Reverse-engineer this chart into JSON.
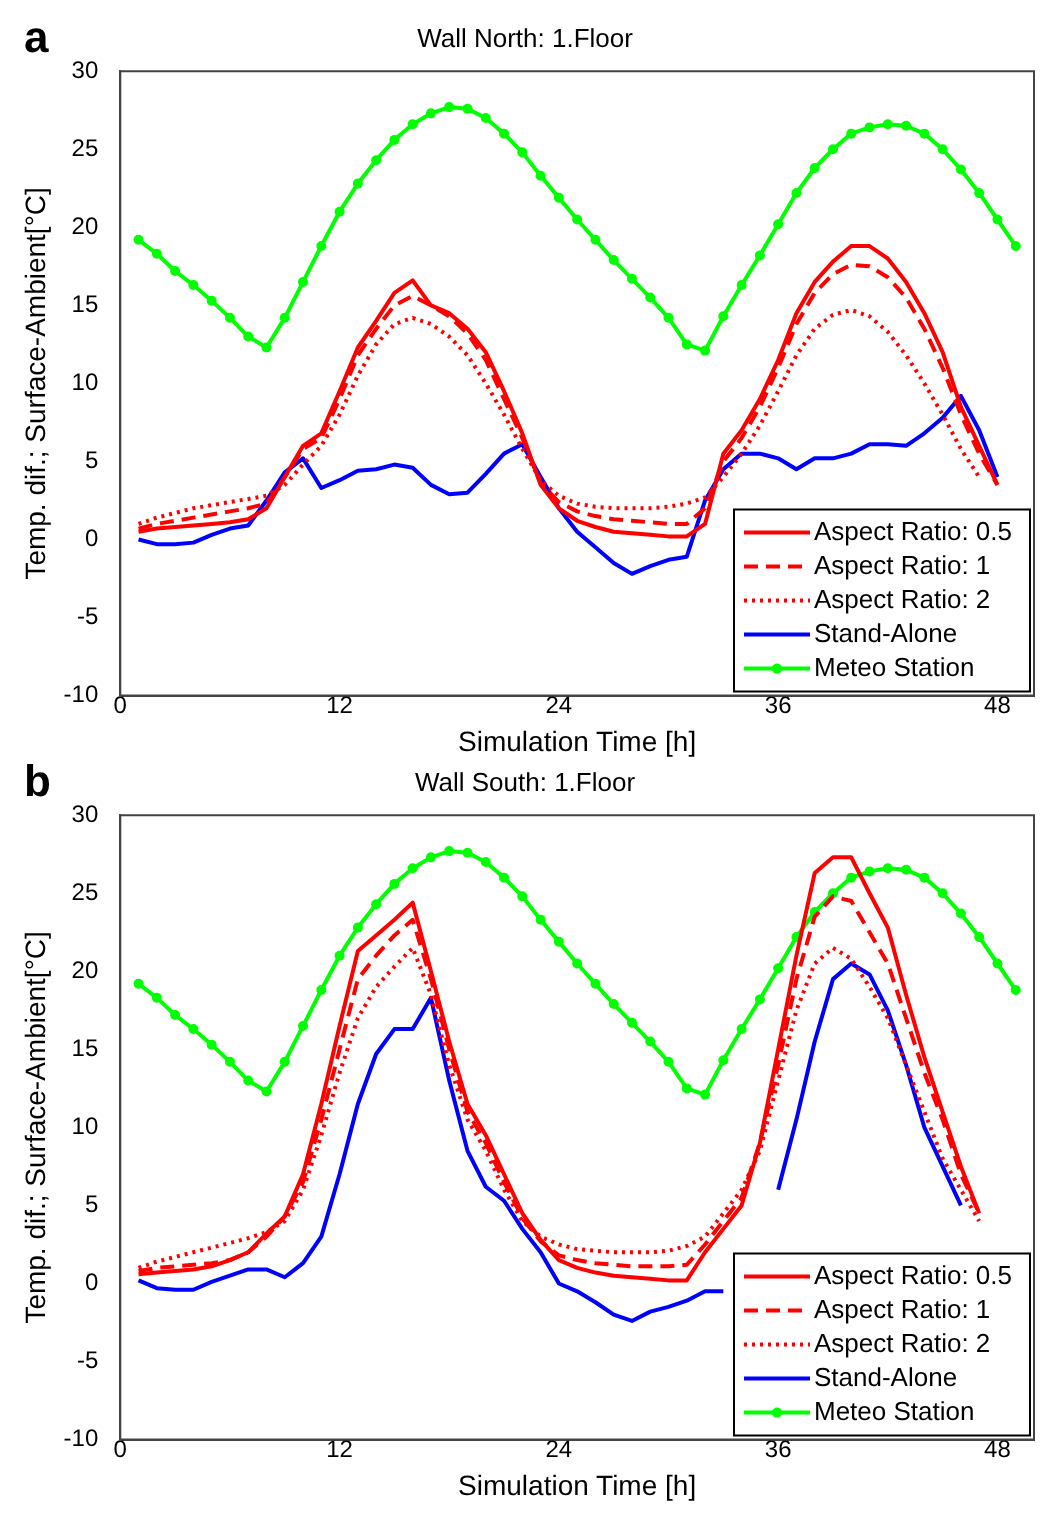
{
  "chart_data": [
    {
      "type": "line",
      "title": "Wall North: 1.Floor",
      "xlabel": "Simulation Time [h]",
      "ylabel": "Temp. dif.; Surface-Ambient[°C]",
      "annotations": [
        "a"
      ],
      "x": [
        1,
        2,
        3,
        4,
        5,
        6,
        7,
        8,
        9,
        10,
        11,
        12,
        13,
        14,
        15,
        16,
        17,
        18,
        19,
        20,
        21,
        22,
        23,
        24,
        25,
        26,
        27,
        28,
        29,
        30,
        31,
        32,
        33,
        34,
        35,
        36,
        37,
        38,
        39,
        40,
        41,
        42,
        43,
        44,
        45,
        46,
        47,
        48,
        49
      ],
      "xlim": [
        0,
        50
      ],
      "xticks": [
        0,
        12,
        24,
        36,
        48
      ],
      "ylim": [
        -10,
        30
      ],
      "yticks": [
        -10,
        -5,
        0,
        5,
        10,
        15,
        20,
        25,
        30
      ],
      "grid": false,
      "legend": "bottom right",
      "series": [
        {
          "name": "Aspect Ratio: 0.5",
          "color": "#ff0000",
          "line_style": "solid",
          "marker": "none",
          "values": [
            0.5,
            0.7,
            0.8,
            0.9,
            1.0,
            1.1,
            1.3,
            2,
            4,
            6,
            6.8,
            9.5,
            12.3,
            14,
            15.8,
            16.6,
            15,
            14.5,
            13.5,
            12,
            9.5,
            6.8,
            3.5,
            2,
            1.2,
            0.8,
            0.5,
            0.4,
            0.3,
            0.2,
            0.2,
            1,
            5.5,
            7,
            9,
            11.5,
            14.5,
            16.5,
            17.8,
            18.8,
            18.8,
            18,
            16.5,
            14.5,
            12,
            8.5,
            6,
            3.5,
            null
          ]
        },
        {
          "name": "Aspect Ratio: 1",
          "color": "#ff0000",
          "line_style": "dashed",
          "marker": "none",
          "values": [
            0.7,
            1,
            1.2,
            1.4,
            1.6,
            1.8,
            2,
            2.3,
            4,
            5.8,
            6.5,
            9,
            11.8,
            13.5,
            15,
            15.6,
            15,
            14.3,
            13.2,
            11.5,
            9,
            6.5,
            3.6,
            2.4,
            1.8,
            1.5,
            1.3,
            1.2,
            1.1,
            1,
            1,
            2,
            5,
            6.5,
            8.5,
            11,
            13.8,
            15.8,
            17,
            17.6,
            17.5,
            16.8,
            15.5,
            13.5,
            11,
            8,
            5.5,
            3.5,
            null
          ]
        },
        {
          "name": "Aspect Ratio: 2",
          "color": "#ff0000",
          "line_style": "dotted",
          "marker": "none",
          "values": [
            1,
            1.4,
            1.7,
            2,
            2.2,
            2.4,
            2.6,
            2.8,
            3.5,
            4.8,
            6,
            8,
            10.5,
            12.5,
            13.8,
            14.2,
            13.8,
            13,
            11.8,
            10,
            8,
            5.8,
            3.8,
            2.8,
            2.3,
            2.1,
            2,
            2,
            2,
            2.1,
            2.3,
            2.7,
            4,
            5.5,
            7.3,
            9.5,
            11.8,
            13.5,
            14.4,
            14.7,
            14.3,
            13.3,
            11.8,
            10,
            8,
            5.8,
            4,
            null,
            null
          ]
        },
        {
          "name": "Stand-Alone",
          "color": "#0000ff",
          "line_style": "solid",
          "marker": "none",
          "values": [
            0,
            -0.3,
            -0.3,
            -0.2,
            0.3,
            0.7,
            0.9,
            2.5,
            4.3,
            5.2,
            3.3,
            3.8,
            4.4,
            4.5,
            4.8,
            4.6,
            3.5,
            2.9,
            3.0,
            4.2,
            5.5,
            6.1,
            4,
            2,
            0.5,
            -0.5,
            -1.5,
            -2.2,
            -1.7,
            -1.3,
            -1.1,
            2.5,
            4.5,
            5.5,
            5.5,
            5.2,
            4.5,
            5.2,
            5.2,
            5.5,
            6.1,
            6.1,
            6,
            6.8,
            7.8,
            9.2,
            7,
            4,
            null
          ]
        },
        {
          "name": "Meteo Station",
          "color": "#00ff00",
          "line_style": "solid",
          "marker": "circle",
          "values": [
            19.2,
            18.3,
            17.2,
            16.3,
            15.3,
            14.2,
            13.0,
            12.3,
            14.2,
            16.5,
            18.8,
            21,
            22.8,
            24.3,
            25.6,
            26.6,
            27.3,
            27.7,
            27.6,
            27,
            26,
            24.8,
            23.3,
            21.9,
            20.5,
            19.2,
            17.9,
            16.7,
            15.5,
            14.2,
            12.5,
            12.1,
            14.3,
            16.3,
            18.2,
            20.2,
            22.2,
            23.8,
            25.0,
            26.0,
            26.4,
            26.6,
            26.5,
            26,
            25,
            23.7,
            22.2,
            20.5,
            18.8
          ]
        }
      ]
    },
    {
      "type": "line",
      "title": "Wall South: 1.Floor",
      "xlabel": "Simulation Time [h]",
      "ylabel": "Temp. dif.; Surface-Ambient[°C]",
      "annotations": [
        "b"
      ],
      "x": [
        1,
        2,
        3,
        4,
        5,
        6,
        7,
        8,
        9,
        10,
        11,
        12,
        13,
        14,
        15,
        16,
        17,
        18,
        19,
        20,
        21,
        22,
        23,
        24,
        25,
        26,
        27,
        28,
        29,
        30,
        31,
        32,
        33,
        34,
        35,
        36,
        37,
        38,
        39,
        40,
        41,
        42,
        43,
        44,
        45,
        46,
        47,
        48,
        49
      ],
      "xlim": [
        0,
        50
      ],
      "xticks": [
        0,
        12,
        24,
        36,
        48
      ],
      "ylim": [
        -10,
        30
      ],
      "yticks": [
        -10,
        -5,
        0,
        5,
        10,
        15,
        20,
        25,
        30
      ],
      "grid": false,
      "legend": "bottom right",
      "series": [
        {
          "name": "Aspect Ratio: 0.5",
          "color": "#ff0000",
          "line_style": "solid",
          "marker": "none",
          "values": [
            0.6,
            0.7,
            0.8,
            0.9,
            1.1,
            1.5,
            2,
            3.2,
            4.3,
            7,
            11.5,
            16.5,
            21.3,
            22.3,
            23.3,
            24.4,
            20,
            15.5,
            11.5,
            9.5,
            7,
            4.5,
            2.8,
            1.5,
            1,
            0.7,
            0.5,
            0.4,
            0.3,
            0.2,
            0.2,
            2,
            3.5,
            5,
            9,
            15,
            21,
            26.3,
            27.3,
            27.3,
            25,
            22.8,
            18.5,
            14.5,
            11,
            7.5,
            4.5,
            null,
            null
          ]
        },
        {
          "name": "Aspect Ratio: 1",
          "color": "#ff0000",
          "line_style": "dashed",
          "marker": "none",
          "values": [
            0.8,
            1,
            1.1,
            1.2,
            1.3,
            1.5,
            2,
            3,
            4.3,
            6.5,
            10.5,
            15,
            19.5,
            21,
            22.3,
            23.3,
            19.5,
            15,
            11,
            9,
            6.5,
            4.2,
            2.7,
            1.8,
            1.5,
            1.3,
            1.2,
            1.1,
            1.1,
            1.1,
            1.2,
            2.5,
            4,
            5.5,
            9,
            14,
            19.5,
            23.5,
            24.8,
            24.5,
            22.5,
            20.5,
            17,
            13.5,
            10.5,
            7,
            4.5,
            null,
            null
          ]
        },
        {
          "name": "Aspect Ratio: 2",
          "color": "#ff0000",
          "line_style": "dotted",
          "marker": "none",
          "values": [
            1,
            1.4,
            1.7,
            2,
            2.3,
            2.6,
            2.9,
            3.3,
            4,
            6,
            9.5,
            13.5,
            17,
            19,
            20.3,
            21.5,
            18.5,
            14,
            10.5,
            8.5,
            6,
            4,
            3,
            2.5,
            2.2,
            2.1,
            2,
            2,
            2,
            2.1,
            2.4,
            3,
            4.5,
            6,
            8.5,
            13,
            17.5,
            20.5,
            21.5,
            20.8,
            19,
            17,
            14,
            11,
            8,
            6,
            4,
            null,
            null
          ]
        },
        {
          "name": "Stand-Alone",
          "color": "#0000ff",
          "line_style": "solid",
          "marker": "none",
          "values": [
            0.2,
            -0.3,
            -0.4,
            -0.4,
            0.1,
            0.5,
            0.9,
            0.9,
            0.4,
            1.3,
            3,
            7,
            11.5,
            14.7,
            16.3,
            16.3,
            18.3,
            13,
            8.5,
            6.2,
            5.3,
            3.5,
            2,
            0,
            -0.5,
            -1.2,
            -2,
            -2.4,
            -1.8,
            -1.5,
            -1.1,
            -0.5,
            -0.5,
            null,
            null,
            6,
            10.5,
            15.5,
            19.5,
            20.5,
            19.8,
            17.5,
            14,
            10,
            7.5,
            5,
            null,
            null,
            null
          ]
        },
        {
          "name": "Meteo Station",
          "color": "#00ff00",
          "line_style": "solid",
          "marker": "circle",
          "values": [
            19.2,
            18.3,
            17.2,
            16.3,
            15.3,
            14.2,
            13.0,
            12.3,
            14.2,
            16.5,
            18.8,
            21,
            22.8,
            24.3,
            25.6,
            26.6,
            27.3,
            27.7,
            27.6,
            27,
            26,
            24.8,
            23.3,
            21.9,
            20.5,
            19.2,
            17.9,
            16.7,
            15.5,
            14.2,
            12.5,
            12.1,
            14.3,
            16.3,
            18.2,
            20.2,
            22.2,
            23.8,
            25.0,
            26.0,
            26.4,
            26.6,
            26.5,
            26,
            25,
            23.7,
            22.2,
            20.5,
            18.8
          ]
        }
      ]
    }
  ]
}
